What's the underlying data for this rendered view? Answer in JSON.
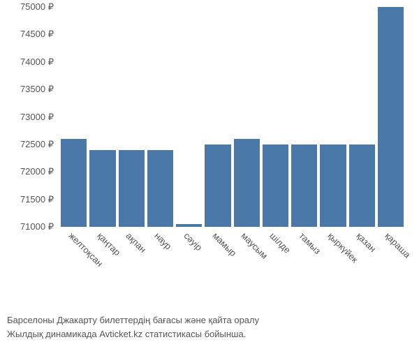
{
  "chart": {
    "type": "bar",
    "ymin": 71000,
    "ymax": 75000,
    "ytick_step": 500,
    "currency": "₽",
    "bar_color": "#4a78a8",
    "background_color": "#ffffff",
    "text_color": "#555555",
    "categories": [
      "желтоқсан",
      "қаңтар",
      "ақпан",
      "наур",
      "сәуір",
      "мамыр",
      "маусым",
      "шілде",
      "тамыз",
      "қыркүйек",
      "қазан",
      "қараша"
    ],
    "values": [
      72600,
      72400,
      72400,
      72400,
      71050,
      72500,
      72600,
      72500,
      72500,
      72500,
      72500,
      75000
    ],
    "yticks": [
      75000,
      74500,
      74000,
      73500,
      73000,
      72500,
      72000,
      71500,
      71000
    ],
    "ytick_labels": [
      "75000 ₽",
      "74500 ₽",
      "74000 ₽",
      "73500 ₽",
      "73000 ₽",
      "72500 ₽",
      "72000 ₽",
      "71500 ₽",
      "71000 ₽"
    ],
    "label_fontsize": 13
  },
  "caption": {
    "line1": "Барселоны Джакарту билеттердің бағасы және қайта оралу",
    "line2": "Жылдық динамикада Avticket.kz статистикасы бойынша."
  }
}
